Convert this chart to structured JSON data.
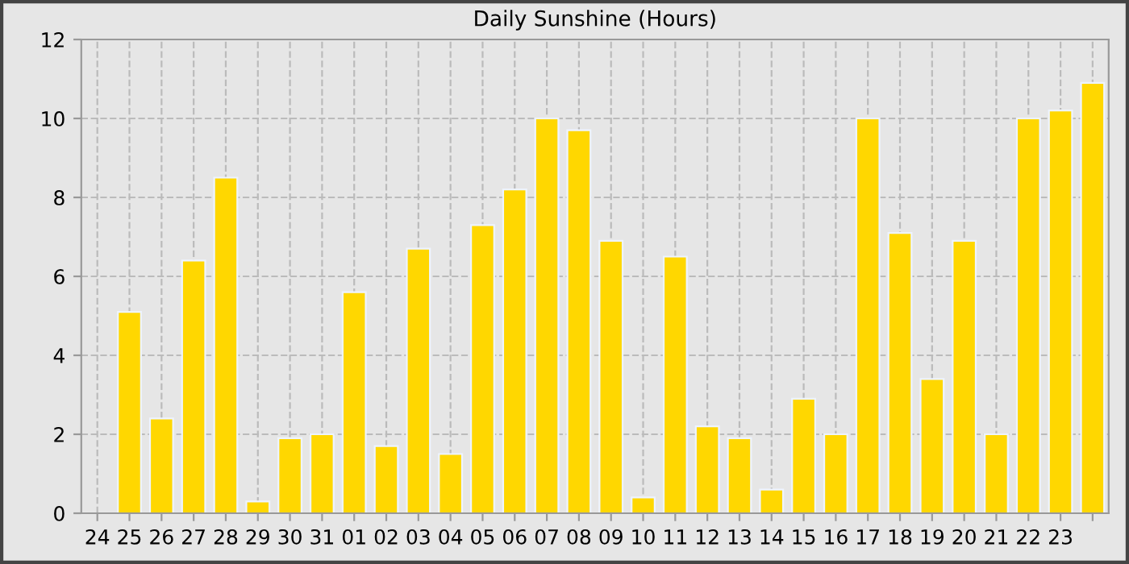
{
  "chart_data": {
    "type": "bar",
    "title": "Daily Sunshine (Hours)",
    "categories": [
      "24",
      "25",
      "26",
      "27",
      "28",
      "29",
      "30",
      "31",
      "01",
      "02",
      "03",
      "04",
      "05",
      "06",
      "07",
      "08",
      "09",
      "10",
      "11",
      "12",
      "13",
      "14",
      "15",
      "16",
      "17",
      "18",
      "19",
      "20",
      "21",
      "22",
      "23",
      null
    ],
    "values": [
      null,
      5.1,
      2.4,
      6.4,
      8.5,
      0.3,
      1.9,
      2.0,
      5.6,
      1.7,
      6.7,
      1.5,
      7.3,
      8.2,
      10.0,
      9.7,
      6.9,
      0.4,
      6.5,
      2.2,
      1.9,
      0.6,
      2.9,
      2.0,
      10.0,
      7.1,
      3.4,
      6.9,
      2.0,
      10.0,
      10.2,
      10.9
    ],
    "color": "#ffd700",
    "ylim": [
      0,
      12
    ],
    "yticks": [
      0,
      2,
      4,
      6,
      8,
      10,
      12
    ],
    "grid": true,
    "line_style": "dashed"
  }
}
